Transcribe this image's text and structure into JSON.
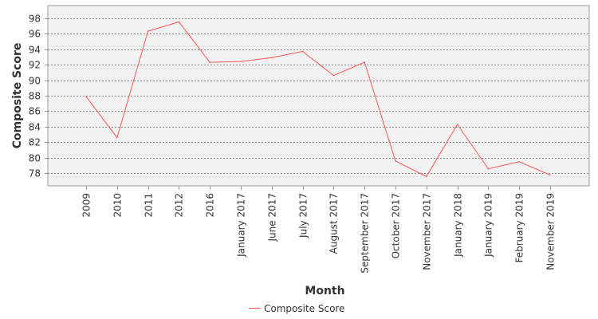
{
  "chart_data": {
    "type": "line",
    "categories": [
      "2009",
      "2010",
      "2011",
      "2012",
      "2016",
      "January 2017",
      "June 2017",
      "July 2017",
      "August 2017",
      "September 2017",
      "October 2017",
      "November 2017",
      "January 2018",
      "January 2019",
      "February 2019",
      "November 2019"
    ],
    "series": [
      {
        "name": "Composite Score",
        "color": "#ff5555",
        "values": [
          87.9,
          82.6,
          96.3,
          97.5,
          92.3,
          92.4,
          92.9,
          93.7,
          90.6,
          92.3,
          79.6,
          77.6,
          84.3,
          78.6,
          79.5,
          77.8
        ]
      }
    ],
    "xlabel": "Month",
    "ylabel": "Composite Score",
    "ylim": [
      76.4,
      99.6
    ],
    "yticks": [
      78,
      80,
      82,
      84,
      86,
      88,
      90,
      92,
      94,
      96,
      98
    ],
    "grid": true,
    "legend": "bottom-center",
    "colors": {
      "plot_background": "#f2f2f2",
      "grid": "#666666",
      "axis": "#999999"
    }
  }
}
